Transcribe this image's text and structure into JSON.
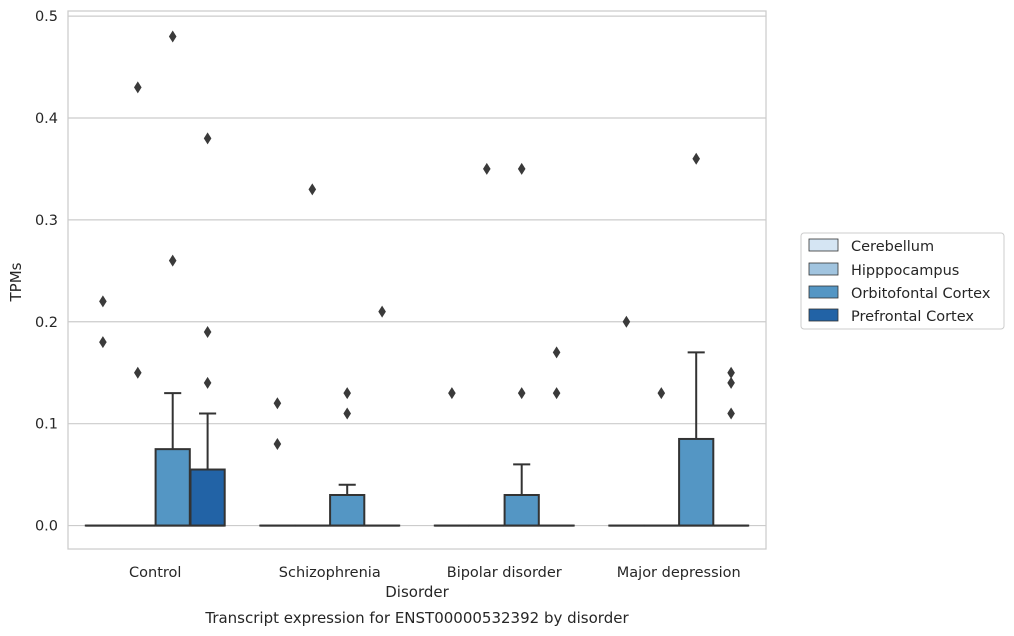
{
  "chart_data": {
    "type": "boxplot",
    "title": "Transcript expression for ENST00000532392 by disorder",
    "xlabel": "Disorder",
    "ylabel": "TPMs",
    "categories": [
      "Control",
      "Schizophrenia",
      "Bipolar disorder",
      "Major depression"
    ],
    "ylim": [
      -0.023,
      0.505
    ],
    "yticks": [
      0.0,
      0.1,
      0.2,
      0.3,
      0.4,
      0.5
    ],
    "ytick_labels": [
      "0.0",
      "0.1",
      "0.2",
      "0.3",
      "0.4",
      "0.5"
    ],
    "grid": "horizontal",
    "legend_position": "right",
    "series": [
      {
        "name": "Cerebellum",
        "color": "#d5e5f3",
        "boxes": [
          {
            "q1": 0,
            "median": 0,
            "q3": 0,
            "whisker_low": 0,
            "whisker_high": 0,
            "fliers": [
              0.22,
              0.18
            ]
          },
          {
            "q1": 0,
            "median": 0,
            "q3": 0,
            "whisker_low": 0,
            "whisker_high": 0,
            "fliers": [
              0.12,
              0.08
            ]
          },
          {
            "q1": 0,
            "median": 0,
            "q3": 0,
            "whisker_low": 0,
            "whisker_high": 0,
            "fliers": [
              0.13
            ]
          },
          {
            "q1": 0,
            "median": 0,
            "q3": 0,
            "whisker_low": 0,
            "whisker_high": 0,
            "fliers": [
              0.2
            ]
          }
        ]
      },
      {
        "name": "Hipppocampus",
        "color": "#a1c4df",
        "boxes": [
          {
            "q1": 0,
            "median": 0,
            "q3": 0,
            "whisker_low": 0,
            "whisker_high": 0,
            "fliers": [
              0.43,
              0.15
            ]
          },
          {
            "q1": 0,
            "median": 0,
            "q3": 0,
            "whisker_low": 0,
            "whisker_high": 0,
            "fliers": [
              0.33
            ]
          },
          {
            "q1": 0,
            "median": 0,
            "q3": 0,
            "whisker_low": 0,
            "whisker_high": 0,
            "fliers": [
              0.35
            ]
          },
          {
            "q1": 0,
            "median": 0,
            "q3": 0,
            "whisker_low": 0,
            "whisker_high": 0,
            "fliers": [
              0.13
            ]
          }
        ]
      },
      {
        "name": "Orbitofontal Cortex",
        "color": "#5496c4",
        "boxes": [
          {
            "q1": 0,
            "median": 0,
            "q3": 0.075,
            "whisker_low": 0,
            "whisker_high": 0.13,
            "fliers": [
              0.48,
              0.26
            ]
          },
          {
            "q1": 0,
            "median": 0,
            "q3": 0.03,
            "whisker_low": 0,
            "whisker_high": 0.04,
            "fliers": [
              0.13,
              0.11
            ]
          },
          {
            "q1": 0,
            "median": 0,
            "q3": 0.03,
            "whisker_low": 0,
            "whisker_high": 0.06,
            "fliers": [
              0.35,
              0.13
            ]
          },
          {
            "q1": 0,
            "median": 0,
            "q3": 0.085,
            "whisker_low": 0,
            "whisker_high": 0.17,
            "fliers": [
              0.36
            ]
          }
        ]
      },
      {
        "name": "Prefrontal Cortex",
        "color": "#2263a6",
        "boxes": [
          {
            "q1": 0,
            "median": 0,
            "q3": 0.055,
            "whisker_low": 0,
            "whisker_high": 0.11,
            "fliers": [
              0.38,
              0.19,
              0.14
            ]
          },
          {
            "q1": 0,
            "median": 0,
            "q3": 0,
            "whisker_low": 0,
            "whisker_high": 0,
            "fliers": [
              0.21
            ]
          },
          {
            "q1": 0,
            "median": 0,
            "q3": 0,
            "whisker_low": 0,
            "whisker_high": 0,
            "fliers": [
              0.17,
              0.13
            ]
          },
          {
            "q1": 0,
            "median": 0,
            "q3": 0,
            "whisker_low": 0,
            "whisker_high": 0,
            "fliers": [
              0.15,
              0.14,
              0.11
            ]
          }
        ]
      }
    ]
  }
}
